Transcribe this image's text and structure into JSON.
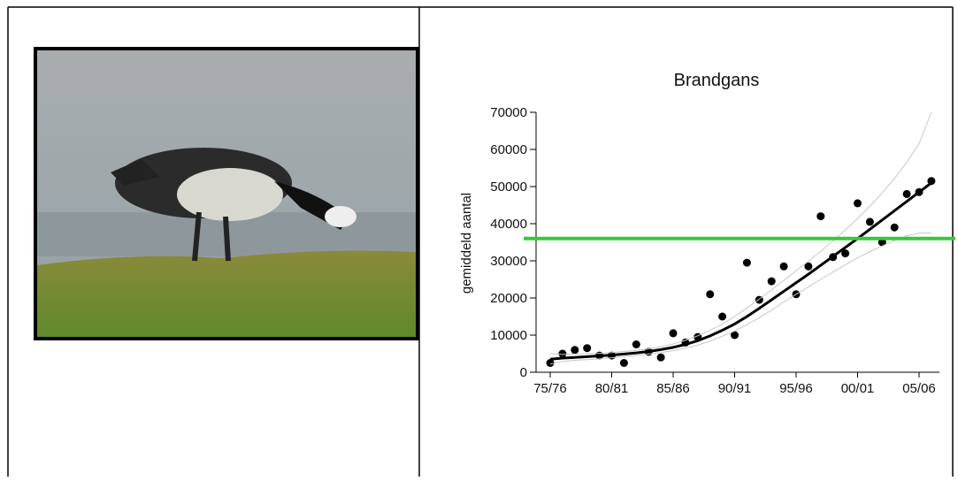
{
  "chart_data": {
    "type": "scatter",
    "title": "Brandgans",
    "ylabel": "gemiddeld aantal",
    "categories": [
      "75/76",
      null,
      null,
      null,
      null,
      "80/81",
      null,
      null,
      null,
      null,
      "85/86",
      null,
      null,
      null,
      null,
      "90/91",
      null,
      null,
      null,
      null,
      "95/96",
      null,
      null,
      null,
      null,
      "00/01",
      null,
      null,
      null,
      null,
      "05/06",
      null
    ],
    "series": [
      {
        "style": "points",
        "color": "#000000",
        "values": [
          2500,
          5000,
          6000,
          6500,
          4500,
          4500,
          2500,
          7500,
          5500,
          4000,
          10500,
          8000,
          9500,
          21000,
          15000,
          10000,
          29500,
          19500,
          24500,
          28500,
          21000,
          28500,
          42000,
          31000,
          32000,
          45500,
          40500,
          35000,
          39000,
          48000,
          48500,
          51500
        ]
      },
      {
        "style": "line",
        "color": "#000000",
        "values": [
          3500,
          3800,
          4000,
          4200,
          4400,
          4600,
          4900,
          5200,
          5600,
          6100,
          6700,
          7500,
          8500,
          9800,
          11300,
          13000,
          15000,
          17200,
          19500,
          21800,
          24100,
          26400,
          28800,
          31200,
          33600,
          36000,
          38500,
          41000,
          43500,
          46000,
          48500,
          51000
        ]
      },
      {
        "style": "band",
        "color": "#c8c8c8",
        "values": [
          5000,
          4800,
          4900,
          5000,
          5100,
          5300,
          5600,
          5900,
          6300,
          6900,
          7600,
          8600,
          9800,
          11300,
          13000,
          15000,
          17300,
          19700,
          22200,
          24700,
          27300,
          29900,
          32600,
          35400,
          38300,
          41400,
          44700,
          48300,
          52200,
          56500,
          61500,
          70000
        ]
      },
      {
        "style": "band",
        "color": "#c8c8c8",
        "values": [
          2200,
          2900,
          3200,
          3400,
          3600,
          3900,
          4200,
          4500,
          4900,
          5300,
          5800,
          6500,
          7300,
          8400,
          9700,
          11100,
          12800,
          14700,
          16700,
          18900,
          21000,
          23000,
          25000,
          27000,
          28900,
          30800,
          32500,
          34000,
          35500,
          36700,
          37500,
          37500
        ]
      }
    ],
    "reference_line": {
      "value": 36000,
      "color": "#33cc33"
    },
    "ylim": [
      0,
      70000
    ],
    "yticks": [
      0,
      10000,
      20000,
      30000,
      40000,
      50000,
      60000,
      70000
    ]
  }
}
